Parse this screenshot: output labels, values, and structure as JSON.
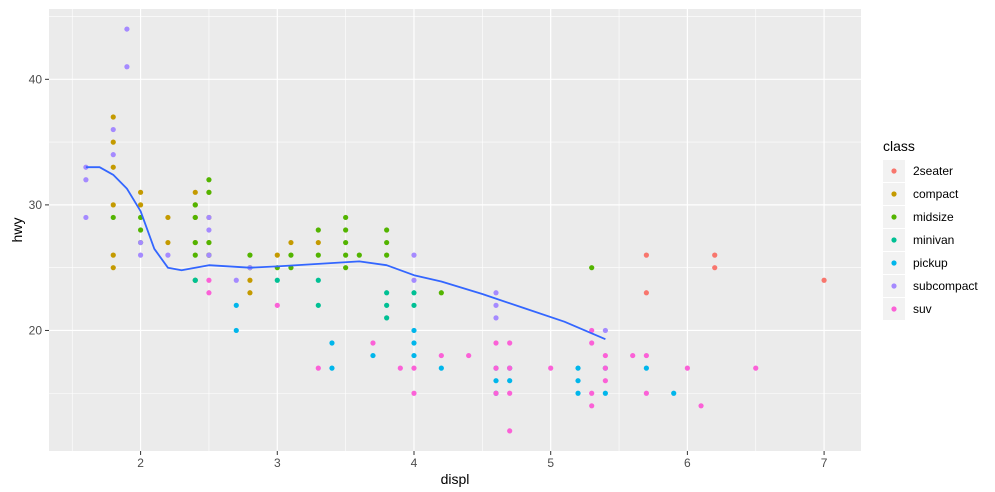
{
  "chart_data": {
    "type": "scatter",
    "xlabel": "displ",
    "ylabel": "hwy",
    "xlim": [
      1.33,
      7.27
    ],
    "ylim": [
      10.4,
      45.6
    ],
    "xticks": [
      2,
      3,
      4,
      5,
      6,
      7
    ],
    "yticks": [
      20,
      30,
      40
    ],
    "grid": true,
    "legend": {
      "title": "class",
      "position": "right"
    },
    "series": [
      {
        "name": "2seater",
        "color": "#F8766D",
        "points": [
          [
            5.7,
            26
          ],
          [
            5.7,
            23
          ],
          [
            6.2,
            26
          ],
          [
            6.2,
            25
          ],
          [
            7.0,
            24
          ]
        ]
      },
      {
        "name": "compact",
        "color": "#C49A00",
        "points": [
          [
            1.8,
            37
          ],
          [
            1.8,
            35
          ],
          [
            1.8,
            33
          ],
          [
            1.8,
            30
          ],
          [
            1.8,
            26
          ],
          [
            1.8,
            25
          ],
          [
            2.0,
            31
          ],
          [
            2.0,
            30
          ],
          [
            2.2,
            29
          ],
          [
            2.2,
            27
          ],
          [
            2.4,
            31
          ],
          [
            2.4,
            30
          ],
          [
            2.4,
            29
          ],
          [
            2.4,
            27
          ],
          [
            2.5,
            31
          ],
          [
            2.5,
            29
          ],
          [
            2.5,
            27
          ],
          [
            2.5,
            26
          ],
          [
            2.8,
            24
          ],
          [
            2.8,
            23
          ],
          [
            3.0,
            26
          ],
          [
            3.1,
            27
          ],
          [
            3.3,
            27
          ]
        ]
      },
      {
        "name": "midsize",
        "color": "#53B400",
        "points": [
          [
            1.8,
            29
          ],
          [
            2.0,
            29
          ],
          [
            2.0,
            28
          ],
          [
            2.0,
            27
          ],
          [
            2.4,
            30
          ],
          [
            2.4,
            29
          ],
          [
            2.4,
            27
          ],
          [
            2.4,
            26
          ],
          [
            2.4,
            24
          ],
          [
            2.5,
            32
          ],
          [
            2.5,
            31
          ],
          [
            2.5,
            27
          ],
          [
            2.5,
            26
          ],
          [
            2.8,
            26
          ],
          [
            2.8,
            25
          ],
          [
            3.0,
            25
          ],
          [
            3.1,
            26
          ],
          [
            3.1,
            25
          ],
          [
            3.3,
            28
          ],
          [
            3.3,
            26
          ],
          [
            3.5,
            29
          ],
          [
            3.5,
            28
          ],
          [
            3.5,
            27
          ],
          [
            3.5,
            26
          ],
          [
            3.5,
            25
          ],
          [
            3.6,
            26
          ],
          [
            3.8,
            28
          ],
          [
            3.8,
            27
          ],
          [
            3.8,
            26
          ],
          [
            4.2,
            23
          ],
          [
            5.3,
            25
          ]
        ]
      },
      {
        "name": "minivan",
        "color": "#00C094",
        "points": [
          [
            2.4,
            24
          ],
          [
            3.0,
            24
          ],
          [
            3.3,
            24
          ],
          [
            3.3,
            22
          ],
          [
            3.8,
            23
          ],
          [
            3.8,
            22
          ],
          [
            3.8,
            21
          ],
          [
            4.0,
            23
          ],
          [
            4.0,
            22
          ]
        ]
      },
      {
        "name": "pickup",
        "color": "#00B6EB",
        "points": [
          [
            2.7,
            22
          ],
          [
            2.7,
            20
          ],
          [
            3.4,
            19
          ],
          [
            3.4,
            17
          ],
          [
            3.7,
            18
          ],
          [
            4.0,
            20
          ],
          [
            4.0,
            19
          ],
          [
            4.0,
            18
          ],
          [
            4.2,
            17
          ],
          [
            4.6,
            17
          ],
          [
            4.6,
            16
          ],
          [
            4.6,
            15
          ],
          [
            4.7,
            17
          ],
          [
            4.7,
            16
          ],
          [
            5.2,
            17
          ],
          [
            5.2,
            16
          ],
          [
            5.2,
            15
          ],
          [
            5.4,
            17
          ],
          [
            5.4,
            15
          ],
          [
            5.7,
            17
          ],
          [
            5.9,
            15
          ]
        ]
      },
      {
        "name": "subcompact",
        "color": "#A58AFF",
        "points": [
          [
            1.6,
            33
          ],
          [
            1.6,
            32
          ],
          [
            1.6,
            29
          ],
          [
            1.8,
            36
          ],
          [
            1.8,
            34
          ],
          [
            1.9,
            44
          ],
          [
            1.9,
            41
          ],
          [
            2.0,
            27
          ],
          [
            2.0,
            26
          ],
          [
            2.2,
            26
          ],
          [
            2.5,
            29
          ],
          [
            2.5,
            28
          ],
          [
            2.5,
            26
          ],
          [
            2.7,
            24
          ],
          [
            2.8,
            25
          ],
          [
            4.0,
            26
          ],
          [
            4.0,
            24
          ],
          [
            4.6,
            23
          ],
          [
            4.6,
            22
          ],
          [
            4.6,
            21
          ],
          [
            5.4,
            20
          ]
        ]
      },
      {
        "name": "suv",
        "color": "#FB61D7",
        "points": [
          [
            2.5,
            24
          ],
          [
            2.5,
            23
          ],
          [
            3.0,
            22
          ],
          [
            3.3,
            17
          ],
          [
            3.7,
            19
          ],
          [
            3.9,
            17
          ],
          [
            4.0,
            17
          ],
          [
            4.0,
            15
          ],
          [
            4.2,
            18
          ],
          [
            4.4,
            18
          ],
          [
            4.6,
            19
          ],
          [
            4.6,
            17
          ],
          [
            4.6,
            15
          ],
          [
            4.7,
            19
          ],
          [
            4.7,
            17
          ],
          [
            4.7,
            15
          ],
          [
            4.7,
            12
          ],
          [
            5.0,
            17
          ],
          [
            5.3,
            20
          ],
          [
            5.3,
            19
          ],
          [
            5.3,
            15
          ],
          [
            5.3,
            14
          ],
          [
            5.4,
            18
          ],
          [
            5.4,
            17
          ],
          [
            5.4,
            16
          ],
          [
            5.6,
            18
          ],
          [
            5.7,
            18
          ],
          [
            5.7,
            15
          ],
          [
            6.0,
            17
          ],
          [
            6.1,
            14
          ],
          [
            6.5,
            17
          ]
        ]
      }
    ],
    "smooth": {
      "color": "#3366FF",
      "points": [
        [
          1.6,
          33.0
        ],
        [
          1.7,
          33.0
        ],
        [
          1.8,
          32.4
        ],
        [
          1.9,
          31.3
        ],
        [
          2.0,
          29.5
        ],
        [
          2.1,
          26.5
        ],
        [
          2.2,
          25.0
        ],
        [
          2.3,
          24.8
        ],
        [
          2.5,
          25.2
        ],
        [
          2.8,
          25.0
        ],
        [
          3.0,
          25.1
        ],
        [
          3.3,
          25.3
        ],
        [
          3.6,
          25.5
        ],
        [
          3.8,
          25.2
        ],
        [
          4.0,
          24.4
        ],
        [
          4.2,
          23.9
        ],
        [
          4.5,
          22.9
        ],
        [
          4.8,
          21.8
        ],
        [
          5.1,
          20.7
        ],
        [
          5.4,
          19.3
        ]
      ]
    }
  }
}
